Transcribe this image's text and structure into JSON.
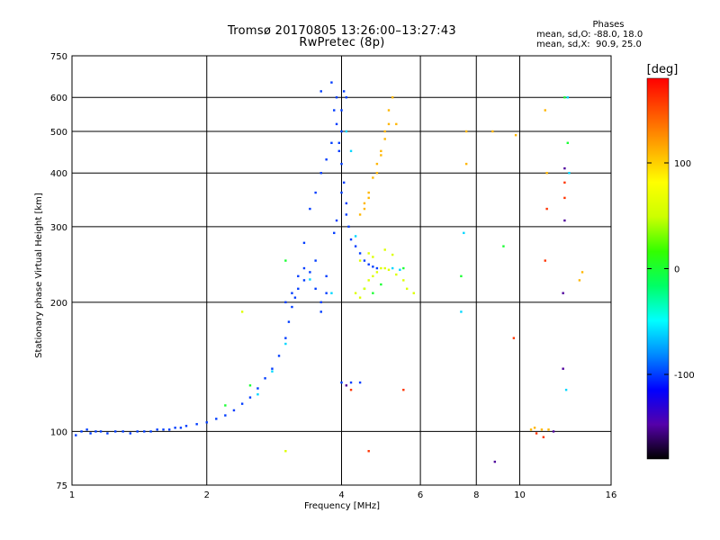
{
  "chart_data": {
    "type": "scatter",
    "title": "Tromsø 20170805 13:26:00–13:27:43",
    "subtitle": "RwPretec (8p)",
    "xlabel": "Frequency [MHz]",
    "ylabel": "Stationary phase Virtual Height [km]",
    "x_scale": "log",
    "y_scale": "log",
    "xlim": [
      1,
      16
    ],
    "ylim": [
      75,
      750
    ],
    "x_ticks": [
      "1",
      "2",
      "4",
      "6",
      "8",
      "10",
      "16"
    ],
    "y_ticks": [
      "75",
      "100",
      "200",
      "300",
      "400",
      "500",
      "600",
      "750"
    ],
    "grid": true,
    "phase_info": {
      "title": "Phases",
      "line1": "mean, sd,O: -88.0, 18.0",
      "line2": "mean, sd,X:  90.9, 25.0"
    },
    "colorbar": {
      "label": "[deg]",
      "ticks": [
        "100",
        "0",
        "-100"
      ],
      "tick_values": [
        100,
        0,
        -100
      ],
      "range": [
        -180,
        180
      ],
      "colors": [
        "#000000",
        "#5500aa",
        "#0000ff",
        "#0088ff",
        "#00ffff",
        "#00ff66",
        "#33ff00",
        "#ccff00",
        "#ffff00",
        "#ffaa00",
        "#ff5500",
        "#ff0000"
      ]
    },
    "series": [
      {
        "phase": -100,
        "points": [
          [
            1.02,
            98
          ],
          [
            1.05,
            100
          ],
          [
            1.08,
            101
          ],
          [
            1.1,
            99
          ],
          [
            1.13,
            100
          ],
          [
            1.16,
            100
          ],
          [
            1.2,
            99
          ],
          [
            1.25,
            100
          ],
          [
            1.3,
            100
          ],
          [
            1.35,
            99
          ],
          [
            1.4,
            100
          ],
          [
            1.45,
            100
          ],
          [
            1.5,
            100
          ],
          [
            1.55,
            101
          ],
          [
            1.6,
            101
          ],
          [
            1.65,
            101
          ],
          [
            1.7,
            102
          ],
          [
            1.75,
            102
          ],
          [
            1.8,
            103
          ],
          [
            1.9,
            104
          ],
          [
            2.0,
            105
          ],
          [
            2.1,
            107
          ],
          [
            2.2,
            109
          ],
          [
            2.3,
            112
          ],
          [
            2.4,
            116
          ],
          [
            2.5,
            120
          ],
          [
            2.6,
            126
          ],
          [
            2.7,
            133
          ],
          [
            2.8,
            140
          ],
          [
            2.9,
            150
          ],
          [
            3.0,
            165
          ],
          [
            3.05,
            180
          ],
          [
            3.1,
            195
          ],
          [
            3.15,
            205
          ],
          [
            3.2,
            215
          ],
          [
            3.3,
            225
          ],
          [
            3.4,
            235
          ],
          [
            3.5,
            215
          ],
          [
            3.6,
            200
          ],
          [
            3.7,
            230
          ],
          [
            3.3,
            275
          ],
          [
            3.4,
            330
          ],
          [
            3.5,
            360
          ],
          [
            3.6,
            400
          ],
          [
            3.7,
            430
          ],
          [
            3.8,
            470
          ],
          [
            3.9,
            520
          ],
          [
            4.0,
            560
          ],
          [
            4.05,
            620
          ],
          [
            4.1,
            600
          ],
          [
            4.0,
            500
          ],
          [
            3.95,
            450
          ],
          [
            4.0,
            420
          ],
          [
            4.05,
            380
          ],
          [
            4.1,
            340
          ],
          [
            4.15,
            300
          ],
          [
            4.2,
            280
          ],
          [
            4.3,
            270
          ],
          [
            4.4,
            260
          ],
          [
            4.5,
            250
          ],
          [
            4.6,
            245
          ],
          [
            4.7,
            242
          ],
          [
            4.8,
            240
          ],
          [
            4.0,
            130
          ],
          [
            4.2,
            130
          ],
          [
            4.4,
            130
          ],
          [
            3.6,
            620
          ],
          [
            3.8,
            650
          ],
          [
            3.9,
            600
          ],
          [
            3.85,
            560
          ],
          [
            3.95,
            470
          ],
          [
            4.0,
            360
          ],
          [
            3.9,
            310
          ],
          [
            3.85,
            290
          ],
          [
            4.1,
            320
          ],
          [
            3.5,
            250
          ],
          [
            3.3,
            240
          ],
          [
            3.2,
            230
          ],
          [
            3.1,
            210
          ],
          [
            3.0,
            200
          ],
          [
            3.6,
            190
          ],
          [
            3.7,
            210
          ]
        ]
      },
      {
        "phase": -60,
        "points": [
          [
            2.6,
            122
          ],
          [
            2.8,
            138
          ],
          [
            3.0,
            160
          ],
          [
            3.4,
            226
          ],
          [
            3.8,
            210
          ],
          [
            4.1,
            500
          ],
          [
            4.2,
            450
          ],
          [
            4.3,
            285
          ],
          [
            5.2,
            240
          ],
          [
            5.4,
            238
          ],
          [
            7.4,
            190
          ],
          [
            7.5,
            290
          ],
          [
            12.7,
            125
          ],
          [
            12.9,
            400
          ],
          [
            12.8,
            600
          ]
        ]
      },
      {
        "phase": 0,
        "points": [
          [
            2.2,
            115
          ],
          [
            2.5,
            128
          ],
          [
            3.0,
            250
          ],
          [
            4.5,
            215
          ],
          [
            4.7,
            210
          ],
          [
            4.9,
            220
          ],
          [
            5.5,
            240
          ],
          [
            7.4,
            230
          ],
          [
            9.2,
            270
          ],
          [
            12.8,
            470
          ],
          [
            12.6,
            600
          ]
        ]
      },
      {
        "phase": 60,
        "points": [
          [
            4.3,
            210
          ],
          [
            4.4,
            205
          ],
          [
            4.5,
            215
          ],
          [
            4.6,
            225
          ],
          [
            4.7,
            230
          ],
          [
            4.8,
            235
          ],
          [
            4.9,
            240
          ],
          [
            5.0,
            240
          ],
          [
            5.1,
            238
          ],
          [
            5.3,
            232
          ],
          [
            5.5,
            225
          ],
          [
            5.6,
            215
          ],
          [
            5.8,
            210
          ],
          [
            4.4,
            250
          ],
          [
            4.6,
            260
          ],
          [
            4.7,
            255
          ],
          [
            5.0,
            265
          ],
          [
            5.2,
            258
          ],
          [
            3.0,
            90
          ],
          [
            2.4,
            190
          ]
        ]
      },
      {
        "phase": 110,
        "points": [
          [
            4.4,
            320
          ],
          [
            4.5,
            340
          ],
          [
            4.6,
            360
          ],
          [
            4.7,
            390
          ],
          [
            4.8,
            420
          ],
          [
            4.9,
            450
          ],
          [
            5.0,
            480
          ],
          [
            5.1,
            520
          ],
          [
            4.5,
            330
          ],
          [
            4.6,
            350
          ],
          [
            4.8,
            400
          ],
          [
            4.9,
            440
          ],
          [
            5.0,
            500
          ],
          [
            5.1,
            560
          ],
          [
            5.2,
            600
          ],
          [
            5.3,
            520
          ],
          [
            7.6,
            420
          ],
          [
            7.6,
            500
          ],
          [
            8.7,
            500
          ],
          [
            9.8,
            490
          ],
          [
            10.6,
            101
          ],
          [
            10.8,
            102
          ],
          [
            11.2,
            101
          ],
          [
            11.6,
            101
          ],
          [
            13.6,
            225
          ],
          [
            13.8,
            235
          ],
          [
            11.5,
            400
          ],
          [
            11.4,
            560
          ]
        ]
      },
      {
        "phase": 160,
        "points": [
          [
            4.6,
            90
          ],
          [
            5.5,
            125
          ],
          [
            4.2,
            125
          ],
          [
            10.9,
            99
          ],
          [
            11.3,
            97
          ],
          [
            11.5,
            330
          ],
          [
            12.6,
            350
          ],
          [
            11.4,
            250
          ],
          [
            9.7,
            165
          ],
          [
            12.6,
            380
          ]
        ]
      },
      {
        "phase": -150,
        "points": [
          [
            8.8,
            85
          ],
          [
            12.5,
            140
          ],
          [
            12.5,
            210
          ],
          [
            12.6,
            310
          ],
          [
            11.9,
            100
          ],
          [
            12.6,
            410
          ],
          [
            4.1,
            128
          ]
        ]
      }
    ]
  }
}
